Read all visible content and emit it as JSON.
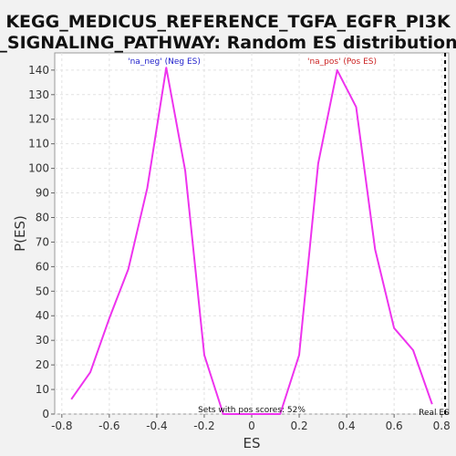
{
  "chart_data": {
    "type": "line",
    "title_lines": [
      "KEGG_MEDICUS_REFERENCE_TGFA_EGFR_PI3K",
      "_SIGNALING_PATHWAY: Random ES distribution"
    ],
    "xlabel": "ES",
    "ylabel": "P(ES)",
    "xlim": [
      -0.83,
      0.83
    ],
    "ylim": [
      0,
      147
    ],
    "x_ticks": [
      -0.8,
      -0.6,
      -0.4,
      -0.2,
      0.0,
      0.2,
      0.4,
      0.6,
      0.8
    ],
    "x_tick_labels": [
      "-0.8",
      "-0.6",
      "-0.4",
      "-0.2",
      "0",
      "0.2",
      "0.4",
      "0.6",
      "0.8"
    ],
    "y_ticks": [
      0,
      10,
      20,
      30,
      40,
      50,
      60,
      70,
      80,
      90,
      100,
      110,
      120,
      130,
      140
    ],
    "grid": true,
    "line_color": "#ee33ee",
    "series": [
      {
        "x": [
          -0.76,
          -0.68,
          -0.6,
          -0.52,
          -0.44,
          -0.36,
          -0.28,
          -0.2,
          -0.12,
          -0.04,
          0.04,
          0.12,
          0.2,
          0.28,
          0.36,
          0.44,
          0.52,
          0.6,
          0.68,
          0.76
        ],
        "y": [
          6,
          17,
          39,
          59,
          92,
          141,
          99,
          24,
          0,
          0,
          0,
          0,
          24,
          102,
          140,
          125,
          67,
          35,
          26,
          4
        ]
      }
    ],
    "annotations": {
      "neg_label": "'na_neg' (Neg ES)",
      "neg_color": "#2222cc",
      "pos_label": "'na_pos' (Pos ES)",
      "pos_color": "#cc2222",
      "pos_scores_text": "Sets with pos scores: 52%",
      "real_es_label": "Real ES",
      "real_es_x": 0.815
    }
  }
}
